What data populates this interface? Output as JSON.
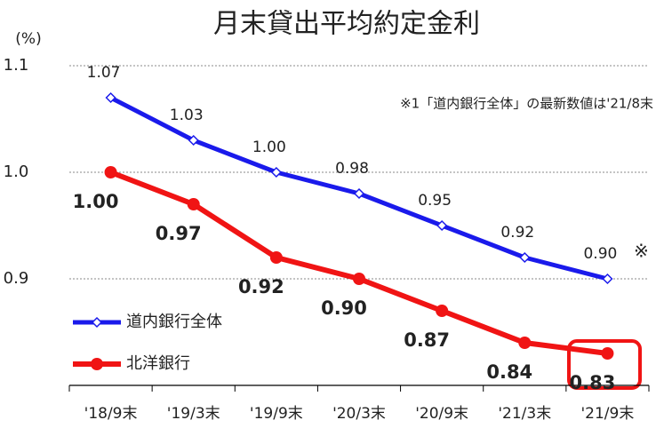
{
  "chart_data": {
    "type": "line",
    "title": "月末貸出平均約定金利",
    "y_label": "(%)",
    "annotation": "※1「道内銀行全体」の最新数値は'21/8末",
    "last_point_note": "※",
    "categories": [
      "'18/9末",
      "'19/3末",
      "'19/9末",
      "'20/3末",
      "'20/9末",
      "'21/3末",
      "'21/9末"
    ],
    "series": [
      {
        "name": "道内銀行全体",
        "color": "#1a1aeb",
        "marker": "diamond",
        "values": [
          1.07,
          1.03,
          1.0,
          0.98,
          0.95,
          0.92,
          0.9
        ],
        "value_labels": [
          "1.07",
          "1.03",
          "1.00",
          "0.98",
          "0.95",
          "0.92",
          "0.90"
        ]
      },
      {
        "name": "北洋銀行",
        "color": "#f01414",
        "marker": "circle",
        "values": [
          1.0,
          0.97,
          0.92,
          0.9,
          0.87,
          0.84,
          0.83
        ],
        "value_labels": [
          "1.00",
          "0.97",
          "0.92",
          "0.90",
          "0.87",
          "0.84",
          "0.83"
        ]
      }
    ],
    "ylim": [
      0.8,
      1.1
    ],
    "yticks": [
      0.9,
      {
        "value": 1.0,
        "label": "1.0"
      },
      1.1
    ],
    "grid": true,
    "legend": "left"
  }
}
